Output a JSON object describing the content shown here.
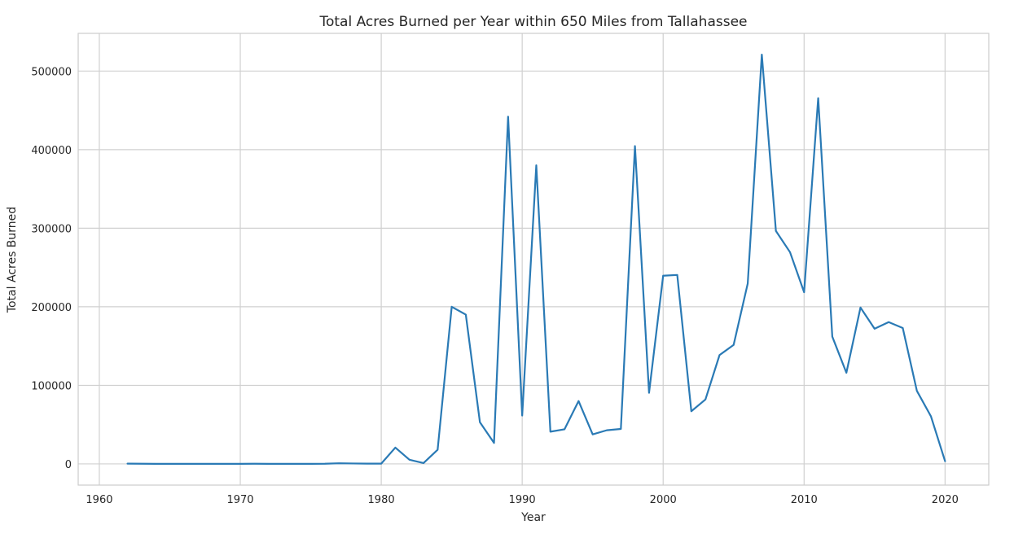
{
  "chart_data": {
    "type": "line",
    "title": "Total Acres Burned per Year within 650 Miles from Tallahassee",
    "xlabel": "Year",
    "ylabel": "Total Acres Burned",
    "xlim": [
      1958.5,
      2023.1
    ],
    "ylim": [
      -27000,
      548000
    ],
    "xticks": [
      1960,
      1970,
      1980,
      1990,
      2000,
      2010,
      2020
    ],
    "xtick_labels": [
      "1960",
      "1970",
      "1980",
      "1990",
      "2000",
      "2010",
      "2020"
    ],
    "yticks": [
      0,
      100000,
      200000,
      300000,
      400000,
      500000
    ],
    "ytick_labels": [
      "0",
      "100000",
      "200000",
      "300000",
      "400000",
      "500000"
    ],
    "grid": true,
    "color": "#2a7ab5",
    "x": [
      1962,
      1963,
      1964,
      1965,
      1966,
      1967,
      1968,
      1969,
      1970,
      1971,
      1972,
      1973,
      1974,
      1975,
      1976,
      1977,
      1978,
      1979,
      1980,
      1981,
      1982,
      1983,
      1984,
      1985,
      1986,
      1987,
      1988,
      1989,
      1990,
      1991,
      1992,
      1993,
      1994,
      1995,
      1996,
      1997,
      1998,
      1999,
      2000,
      2001,
      2002,
      2003,
      2004,
      2005,
      2006,
      2007,
      2008,
      2009,
      2010,
      2011,
      2012,
      2013,
      2014,
      2015,
      2016,
      2017,
      2018,
      2019,
      2020
    ],
    "y": [
      300,
      200,
      100,
      100,
      100,
      100,
      100,
      100,
      100,
      200,
      100,
      100,
      100,
      100,
      200,
      800,
      500,
      300,
      300,
      20700,
      5300,
      1000,
      18000,
      200000,
      190000,
      53000,
      26700,
      442000,
      61500,
      380000,
      41000,
      44000,
      80000,
      37500,
      42800,
      44500,
      404500,
      90500,
      239500,
      240500,
      67000,
      82000,
      138500,
      151500,
      229500,
      521000,
      296500,
      269500,
      218500,
      465500,
      162000,
      116000,
      199000,
      172000,
      180500,
      173000,
      93000,
      60500,
      3500
    ]
  }
}
